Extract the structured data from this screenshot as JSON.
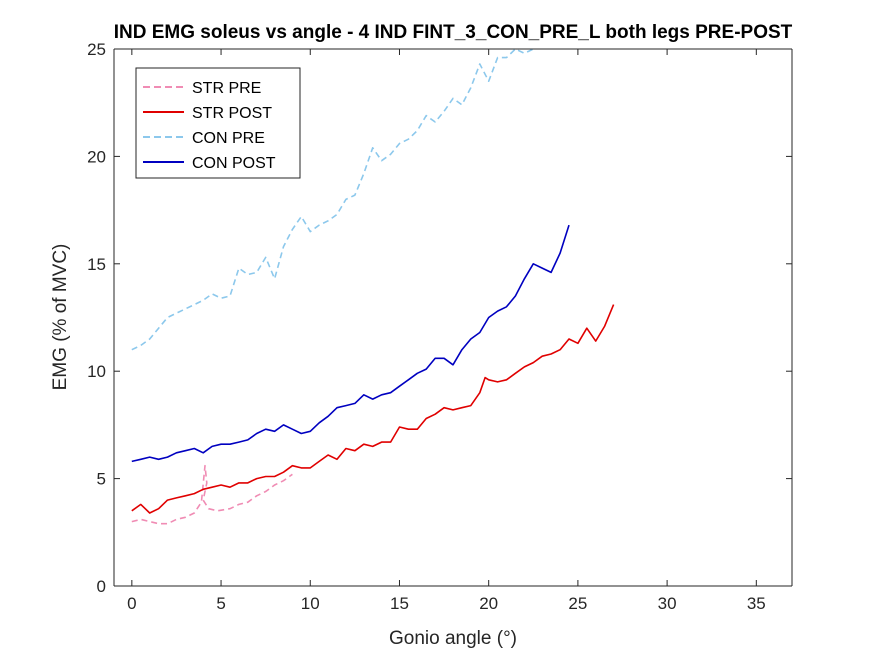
{
  "chart_data": {
    "type": "line",
    "title": "IND EMG soleus vs angle - 4 IND FINT_3_CON_PRE_L both legs PRE-POST",
    "xlabel": "Gonio angle (°)",
    "ylabel": "EMG (% of MVC)",
    "xlim": [
      -1,
      37
    ],
    "ylim": [
      0,
      25
    ],
    "xticks": [
      0,
      5,
      10,
      15,
      20,
      25,
      30,
      35
    ],
    "yticks": [
      0,
      5,
      10,
      15,
      20,
      25
    ],
    "xtick_labels": [
      "0",
      "5",
      "10",
      "15",
      "20",
      "25",
      "30",
      "35"
    ],
    "ytick_labels": [
      "0",
      "5",
      "10",
      "15",
      "20",
      "25"
    ],
    "grid": false,
    "legend_position": "top-left",
    "series": [
      {
        "name": "STR PRE",
        "color": "#f08cb4",
        "style": "dashed",
        "points": [
          [
            0,
            3.0
          ],
          [
            0.5,
            3.1
          ],
          [
            1.0,
            3.0
          ],
          [
            1.5,
            2.9
          ],
          [
            2.0,
            2.9
          ],
          [
            2.5,
            3.1
          ],
          [
            3.0,
            3.2
          ],
          [
            3.5,
            3.4
          ],
          [
            3.9,
            3.9
          ],
          [
            4.1,
            5.6
          ],
          [
            4.2,
            4.8
          ],
          [
            4.0,
            4.0
          ],
          [
            4.3,
            3.6
          ],
          [
            4.8,
            3.5
          ],
          [
            5.5,
            3.6
          ],
          [
            6.0,
            3.8
          ],
          [
            6.5,
            3.9
          ],
          [
            7.0,
            4.2
          ],
          [
            7.5,
            4.4
          ],
          [
            8.0,
            4.7
          ],
          [
            8.5,
            4.9
          ],
          [
            9.0,
            5.2
          ]
        ]
      },
      {
        "name": "STR POST",
        "color": "#e00000",
        "style": "solid",
        "points": [
          [
            0,
            3.5
          ],
          [
            0.5,
            3.8
          ],
          [
            1.0,
            3.4
          ],
          [
            1.5,
            3.6
          ],
          [
            2.0,
            4.0
          ],
          [
            2.5,
            4.1
          ],
          [
            3.0,
            4.2
          ],
          [
            3.5,
            4.3
          ],
          [
            4.0,
            4.5
          ],
          [
            4.5,
            4.6
          ],
          [
            5.0,
            4.7
          ],
          [
            5.5,
            4.6
          ],
          [
            6.0,
            4.8
          ],
          [
            6.5,
            4.8
          ],
          [
            7.0,
            5.0
          ],
          [
            7.5,
            5.1
          ],
          [
            8.0,
            5.1
          ],
          [
            8.5,
            5.3
          ],
          [
            9.0,
            5.6
          ],
          [
            9.5,
            5.5
          ],
          [
            10.0,
            5.5
          ],
          [
            10.5,
            5.8
          ],
          [
            11.0,
            6.1
          ],
          [
            11.5,
            5.9
          ],
          [
            12.0,
            6.4
          ],
          [
            12.5,
            6.3
          ],
          [
            13.0,
            6.6
          ],
          [
            13.5,
            6.5
          ],
          [
            14.0,
            6.7
          ],
          [
            14.5,
            6.7
          ],
          [
            15.0,
            7.4
          ],
          [
            15.5,
            7.3
          ],
          [
            16.0,
            7.3
          ],
          [
            16.5,
            7.8
          ],
          [
            17.0,
            8.0
          ],
          [
            17.5,
            8.3
          ],
          [
            18.0,
            8.2
          ],
          [
            18.5,
            8.3
          ],
          [
            19.0,
            8.4
          ],
          [
            19.5,
            9.0
          ],
          [
            19.8,
            9.7
          ],
          [
            20.0,
            9.6
          ],
          [
            20.5,
            9.5
          ],
          [
            21.0,
            9.6
          ],
          [
            21.5,
            9.9
          ],
          [
            22.0,
            10.2
          ],
          [
            22.5,
            10.4
          ],
          [
            23.0,
            10.7
          ],
          [
            23.5,
            10.8
          ],
          [
            24.0,
            11.0
          ],
          [
            24.5,
            11.5
          ],
          [
            25.0,
            11.3
          ],
          [
            25.5,
            12.0
          ],
          [
            26.0,
            11.4
          ],
          [
            26.5,
            12.1
          ],
          [
            27.0,
            13.1
          ]
        ]
      },
      {
        "name": "CON PRE",
        "color": "#8cc8ec",
        "style": "dashed",
        "points": [
          [
            0,
            11.0
          ],
          [
            0.5,
            11.2
          ],
          [
            1.0,
            11.5
          ],
          [
            1.5,
            12.0
          ],
          [
            2.0,
            12.5
          ],
          [
            2.5,
            12.7
          ],
          [
            3.0,
            12.9
          ],
          [
            3.5,
            13.1
          ],
          [
            4.0,
            13.3
          ],
          [
            4.5,
            13.6
          ],
          [
            5.0,
            13.4
          ],
          [
            5.5,
            13.5
          ],
          [
            6.0,
            14.8
          ],
          [
            6.5,
            14.5
          ],
          [
            7.0,
            14.6
          ],
          [
            7.5,
            15.3
          ],
          [
            8.0,
            14.3
          ],
          [
            8.5,
            15.8
          ],
          [
            9.0,
            16.6
          ],
          [
            9.5,
            17.2
          ],
          [
            10.0,
            16.5
          ],
          [
            10.5,
            16.8
          ],
          [
            11.0,
            17.0
          ],
          [
            11.5,
            17.3
          ],
          [
            12.0,
            18.0
          ],
          [
            12.5,
            18.2
          ],
          [
            13.0,
            19.2
          ],
          [
            13.5,
            20.4
          ],
          [
            14.0,
            19.8
          ],
          [
            14.5,
            20.1
          ],
          [
            15.0,
            20.6
          ],
          [
            15.5,
            20.8
          ],
          [
            16.0,
            21.2
          ],
          [
            16.5,
            21.9
          ],
          [
            17.0,
            21.6
          ],
          [
            17.5,
            22.1
          ],
          [
            18.0,
            22.7
          ],
          [
            18.5,
            22.4
          ],
          [
            19.0,
            23.2
          ],
          [
            19.5,
            24.3
          ],
          [
            20.0,
            23.5
          ],
          [
            20.5,
            24.6
          ],
          [
            21.0,
            24.6
          ],
          [
            21.5,
            25.0
          ],
          [
            22.0,
            24.8
          ],
          [
            22.5,
            25.0
          ]
        ]
      },
      {
        "name": "CON POST",
        "color": "#0000c0",
        "style": "solid",
        "points": [
          [
            0,
            5.8
          ],
          [
            0.5,
            5.9
          ],
          [
            1.0,
            6.0
          ],
          [
            1.5,
            5.9
          ],
          [
            2.0,
            6.0
          ],
          [
            2.5,
            6.2
          ],
          [
            3.0,
            6.3
          ],
          [
            3.5,
            6.4
          ],
          [
            4.0,
            6.2
          ],
          [
            4.5,
            6.5
          ],
          [
            5.0,
            6.6
          ],
          [
            5.5,
            6.6
          ],
          [
            6.0,
            6.7
          ],
          [
            6.5,
            6.8
          ],
          [
            7.0,
            7.1
          ],
          [
            7.5,
            7.3
          ],
          [
            8.0,
            7.2
          ],
          [
            8.5,
            7.5
          ],
          [
            9.0,
            7.3
          ],
          [
            9.5,
            7.1
          ],
          [
            10.0,
            7.2
          ],
          [
            10.5,
            7.6
          ],
          [
            11.0,
            7.9
          ],
          [
            11.5,
            8.3
          ],
          [
            12.0,
            8.4
          ],
          [
            12.5,
            8.5
          ],
          [
            13.0,
            8.9
          ],
          [
            13.5,
            8.7
          ],
          [
            14.0,
            8.9
          ],
          [
            14.5,
            9.0
          ],
          [
            15.0,
            9.3
          ],
          [
            15.5,
            9.6
          ],
          [
            16.0,
            9.9
          ],
          [
            16.5,
            10.1
          ],
          [
            17.0,
            10.6
          ],
          [
            17.5,
            10.6
          ],
          [
            18.0,
            10.3
          ],
          [
            18.5,
            11.0
          ],
          [
            19.0,
            11.5
          ],
          [
            19.5,
            11.8
          ],
          [
            20.0,
            12.5
          ],
          [
            20.5,
            12.8
          ],
          [
            21.0,
            13.0
          ],
          [
            21.5,
            13.5
          ],
          [
            22.0,
            14.3
          ],
          [
            22.5,
            15.0
          ],
          [
            23.0,
            14.8
          ],
          [
            23.5,
            14.6
          ],
          [
            24.0,
            15.5
          ],
          [
            24.5,
            16.8
          ]
        ]
      }
    ]
  }
}
